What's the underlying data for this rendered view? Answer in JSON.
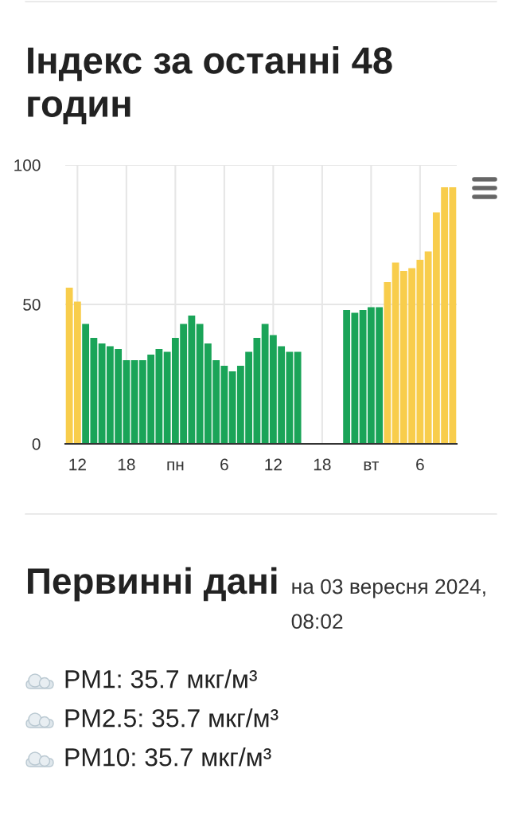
{
  "chart_data": {
    "type": "bar",
    "title": "Індекс за останні 48 годин",
    "categories": [
      null,
      "12",
      null,
      null,
      null,
      null,
      null,
      "18",
      null,
      null,
      null,
      null,
      null,
      "пн",
      null,
      null,
      null,
      null,
      null,
      "6",
      null,
      null,
      null,
      null,
      null,
      "12",
      null,
      null,
      null,
      null,
      null,
      "18",
      null,
      null,
      null,
      null,
      null,
      "вт",
      null,
      null,
      null,
      null,
      null,
      "6",
      null,
      null,
      null,
      null
    ],
    "values": [
      56,
      51,
      43,
      38,
      36,
      35,
      34,
      30,
      30,
      30,
      32,
      34,
      33,
      38,
      43,
      46,
      43,
      36,
      30,
      28,
      26,
      28,
      33,
      38,
      43,
      39,
      35,
      33,
      33,
      null,
      null,
      null,
      null,
      null,
      48,
      47,
      48,
      49,
      49,
      58,
      65,
      62,
      63,
      66,
      69,
      83,
      92,
      92
    ],
    "colors": [
      "#f8cd4c",
      "#f8cd4c",
      "#1aa458",
      "#1aa458",
      "#1aa458",
      "#1aa458",
      "#1aa458",
      "#1aa458",
      "#1aa458",
      "#1aa458",
      "#1aa458",
      "#1aa458",
      "#1aa458",
      "#1aa458",
      "#1aa458",
      "#1aa458",
      "#1aa458",
      "#1aa458",
      "#1aa458",
      "#1aa458",
      "#1aa458",
      "#1aa458",
      "#1aa458",
      "#1aa458",
      "#1aa458",
      "#1aa458",
      "#1aa458",
      "#1aa458",
      "#1aa458",
      null,
      null,
      null,
      null,
      null,
      "#1aa458",
      "#1aa458",
      "#1aa458",
      "#1aa458",
      "#1aa458",
      "#f8cd4c",
      "#f8cd4c",
      "#f8cd4c",
      "#f8cd4c",
      "#f8cd4c",
      "#f8cd4c",
      "#f8cd4c",
      "#f8cd4c",
      "#f8cd4c"
    ],
    "ylim": [
      0,
      100
    ],
    "yticks": [
      0,
      50,
      100
    ],
    "grid": true,
    "annotations": [
      "Первинні дані",
      "на 03 вересня 2024, 08:02",
      "PM1: 35.7 мкг/м³",
      "PM2.5: 35.7 мкг/м³",
      "PM10: 35.7 мкг/м³"
    ]
  }
}
